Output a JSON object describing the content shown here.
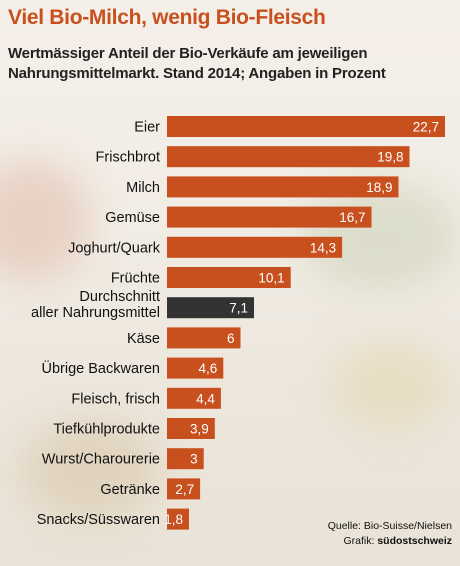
{
  "title": "Viel Bio-Milch, wenig Bio-Fleisch",
  "subtitle": "Wertmässiger Anteil der Bio-Verkäufe am jeweiligen Nahrungsmittelmarkt. Stand 2014; Angaben in Prozent",
  "source": "Quelle: Bio-Suisse/Nielsen",
  "credit_prefix": "Grafik:",
  "credit_name": "südostschweiz",
  "colors": {
    "bar": "#c8501e",
    "highlight": "#333333",
    "title": "#c8501e"
  },
  "chart_data": {
    "type": "bar",
    "orientation": "horizontal",
    "title": "Viel Bio-Milch, wenig Bio-Fleisch",
    "xlabel": "",
    "ylabel": "",
    "xlim": [
      0,
      22.7
    ],
    "grid": false,
    "legend": "none",
    "categories": [
      "Eier",
      "Frischbrot",
      "Milch",
      "Gemüse",
      "Joghurt/Quark",
      "Früchte",
      "Durchschnitt aller Nahrungsmittel",
      "Käse",
      "Übrige Backwaren",
      "Fleisch, frisch",
      "Tiefkühlprodukte",
      "Wurst/Charourerie",
      "Getränke",
      "Snacks/Süsswaren"
    ],
    "values": [
      22.7,
      19.8,
      18.9,
      16.7,
      14.3,
      10.1,
      7.1,
      6,
      4.6,
      4.4,
      3.9,
      3,
      2.7,
      1.8
    ],
    "value_labels": [
      "22,7",
      "19,8",
      "18,9",
      "16,7",
      "14,3",
      "10,1",
      "7,1",
      "6",
      "4,6",
      "4,4",
      "3,9",
      "3",
      "2,7",
      "1,8"
    ],
    "highlight_index": 6
  }
}
